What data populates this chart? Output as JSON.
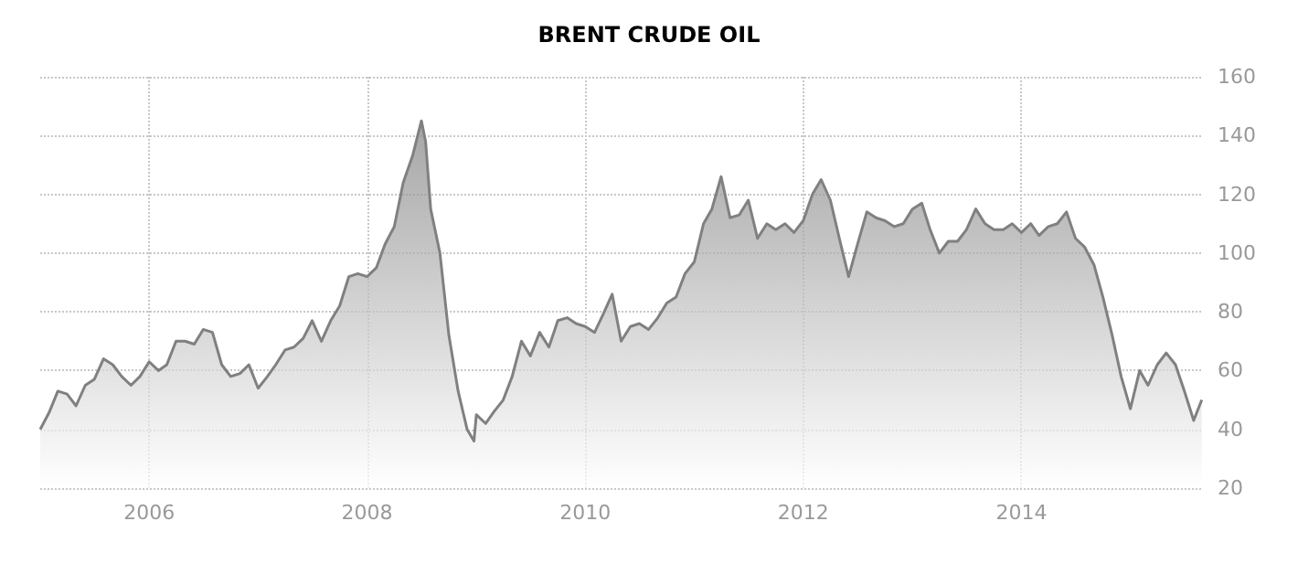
{
  "chart_data": {
    "type": "area",
    "title": "BRENT CRUDE OIL",
    "x": [
      "2005-01",
      "2005-02",
      "2005-03",
      "2005-04",
      "2005-05",
      "2005-06",
      "2005-07",
      "2005-08",
      "2005-09",
      "2005-10",
      "2005-11",
      "2005-12",
      "2006-01",
      "2006-02",
      "2006-03",
      "2006-04",
      "2006-05",
      "2006-06",
      "2006-07",
      "2006-08",
      "2006-09",
      "2006-10",
      "2006-11",
      "2006-12",
      "2007-01",
      "2007-02",
      "2007-03",
      "2007-04",
      "2007-05",
      "2007-06",
      "2007-07",
      "2007-08",
      "2007-09",
      "2007-10",
      "2007-11",
      "2007-12",
      "2008-01",
      "2008-02",
      "2008-03",
      "2008-04",
      "2008-05",
      "2008-06",
      "2008-07",
      "2008-07-15",
      "2008-08",
      "2008-09",
      "2008-10",
      "2008-11",
      "2008-12",
      "2008-12-24",
      "2009-01",
      "2009-02",
      "2009-03",
      "2009-04",
      "2009-05",
      "2009-06",
      "2009-07",
      "2009-08",
      "2009-09",
      "2009-10",
      "2009-11",
      "2009-12",
      "2010-01",
      "2010-02",
      "2010-03",
      "2010-04",
      "2010-05",
      "2010-06",
      "2010-07",
      "2010-08",
      "2010-09",
      "2010-10",
      "2010-11",
      "2010-12",
      "2011-01",
      "2011-02",
      "2011-03",
      "2011-04",
      "2011-05",
      "2011-06",
      "2011-07",
      "2011-08",
      "2011-09",
      "2011-10",
      "2011-11",
      "2011-12",
      "2012-01",
      "2012-02",
      "2012-03",
      "2012-04",
      "2012-05",
      "2012-06",
      "2012-07",
      "2012-08",
      "2012-09",
      "2012-10",
      "2012-11",
      "2012-12",
      "2013-01",
      "2013-02",
      "2013-03",
      "2013-04",
      "2013-05",
      "2013-06",
      "2013-07",
      "2013-08",
      "2013-09",
      "2013-10",
      "2013-11",
      "2013-12",
      "2014-01",
      "2014-02",
      "2014-03",
      "2014-04",
      "2014-05",
      "2014-06",
      "2014-07",
      "2014-08",
      "2014-09",
      "2014-10",
      "2014-11",
      "2014-12",
      "2015-01",
      "2015-02",
      "2015-03",
      "2015-04",
      "2015-05",
      "2015-06",
      "2015-07",
      "2015-08",
      "2015-08-28"
    ],
    "series": [
      {
        "color": "#808080",
        "values": [
          40,
          46,
          53,
          52,
          48,
          55,
          57,
          64,
          62,
          58,
          55,
          58,
          63,
          60,
          62,
          70,
          70,
          69,
          74,
          73,
          62,
          58,
          59,
          62,
          54,
          58,
          62,
          67,
          68,
          71,
          77,
          70,
          77,
          82,
          92,
          93,
          92,
          95,
          103,
          109,
          124,
          133,
          145,
          138,
          115,
          100,
          72,
          53,
          40,
          36,
          45,
          42,
          46,
          50,
          58,
          70,
          65,
          73,
          68,
          77,
          78,
          76,
          75,
          73,
          79,
          86,
          70,
          75,
          76,
          74,
          78,
          83,
          85,
          93,
          97,
          110,
          115,
          126,
          112,
          113,
          118,
          105,
          110,
          108,
          110,
          107,
          111,
          120,
          125,
          118,
          105,
          92,
          103,
          114,
          112,
          111,
          109,
          110,
          115,
          117,
          108,
          100,
          104,
          104,
          108,
          115,
          110,
          108,
          108,
          110,
          107,
          110,
          106,
          109,
          110,
          114,
          105,
          102,
          96,
          85,
          72,
          58,
          47,
          60,
          55,
          62,
          66,
          62,
          53,
          43,
          50
        ]
      }
    ],
    "xlim": [
      "2005-01",
      "2015-09"
    ],
    "xticks": [
      "2006",
      "2008",
      "2010",
      "2012",
      "2014"
    ],
    "ylim": [
      20,
      160
    ],
    "yticks": [
      20,
      40,
      60,
      80,
      100,
      120,
      140,
      160
    ],
    "grid": true
  }
}
